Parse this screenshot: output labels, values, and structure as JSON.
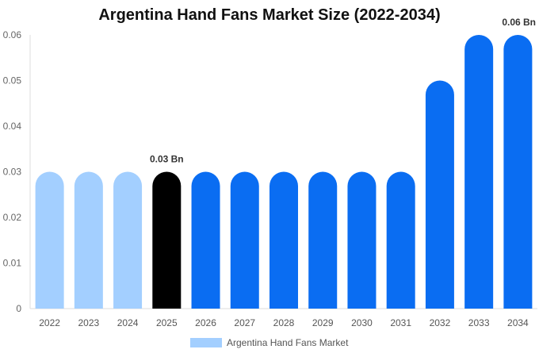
{
  "chart_data": {
    "type": "bar",
    "title": "Argentina Hand Fans Market Size (2022-2034)",
    "categories": [
      "2022",
      "2023",
      "2024",
      "2025",
      "2026",
      "2027",
      "2028",
      "2029",
      "2030",
      "2031",
      "2032",
      "2033",
      "2034"
    ],
    "series": [
      {
        "name": "Argentina Hand Fans Market",
        "values": [
          0.03,
          0.03,
          0.03,
          0.03,
          0.03,
          0.03,
          0.03,
          0.03,
          0.03,
          0.03,
          0.05,
          0.06,
          0.06
        ]
      }
    ],
    "y_ticks": [
      "0",
      "0.01",
      "0.02",
      "0.03",
      "0.04",
      "0.05",
      "0.06"
    ],
    "ylim": [
      0,
      0.06
    ],
    "data_labels": [
      {
        "category": "2025",
        "text": "0.03 Bn"
      },
      {
        "category": "2034",
        "text": "0.06 Bn"
      }
    ],
    "colors": {
      "historical": "#a3cfff",
      "current": "#000000",
      "forecast": "#0a6df2"
    },
    "bar_color_groups": [
      "historical",
      "historical",
      "historical",
      "current",
      "forecast",
      "forecast",
      "forecast",
      "forecast",
      "forecast",
      "forecast",
      "forecast",
      "forecast",
      "forecast"
    ],
    "legend_position": "bottom-center",
    "grid": false
  }
}
